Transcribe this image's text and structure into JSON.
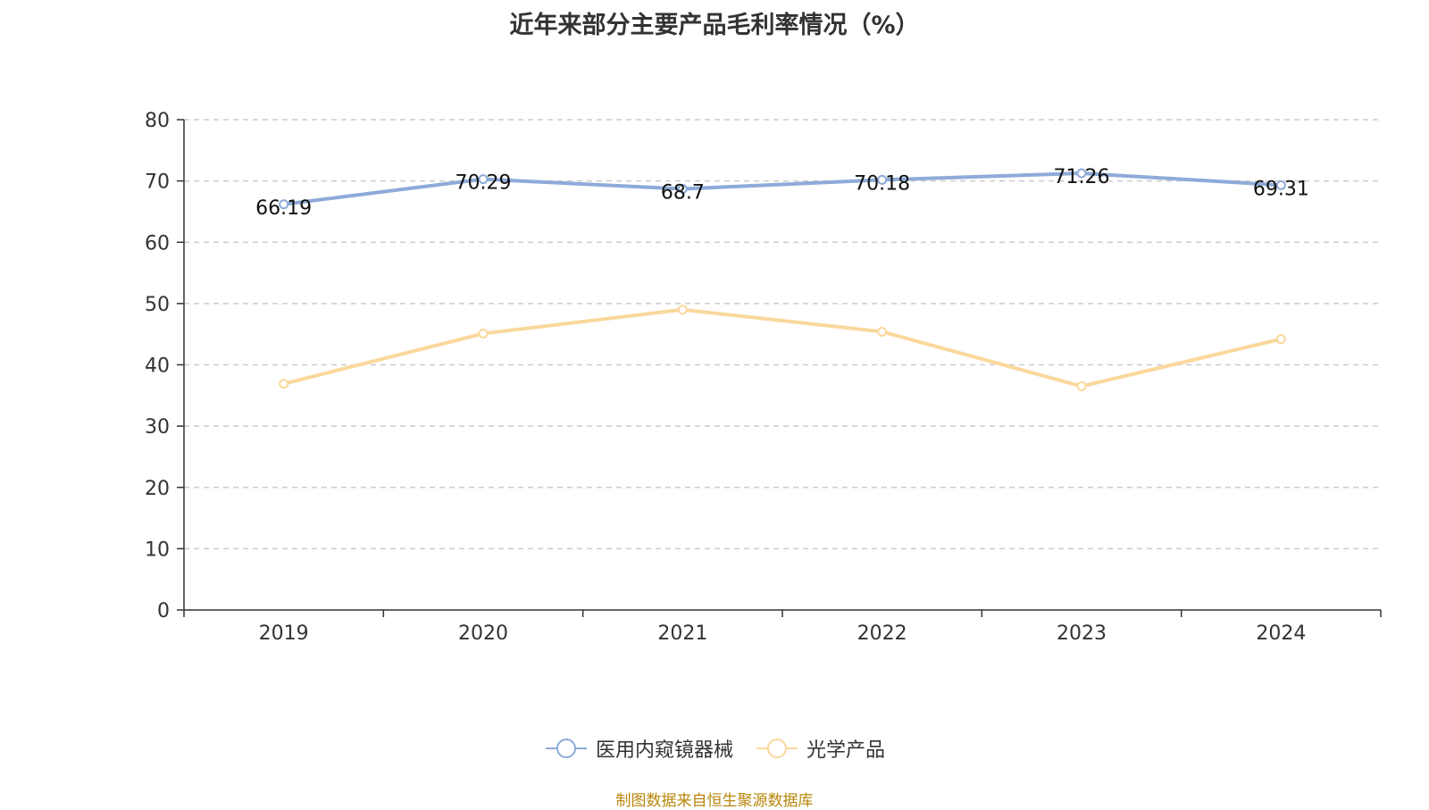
{
  "chart_data": {
    "type": "line",
    "title": "近年来部分主要产品毛利率情况（%）",
    "categories": [
      "2019",
      "2020",
      "2021",
      "2022",
      "2023",
      "2024"
    ],
    "ylim": [
      0,
      80
    ],
    "yticks": [
      0,
      10,
      20,
      30,
      40,
      50,
      60,
      70,
      80
    ],
    "grid": true,
    "legend_position": "bottom",
    "series": [
      {
        "name": "医用内窥镜器械",
        "color": "#8eaad8",
        "values": [
          66.19,
          70.29,
          68.7,
          70.18,
          71.26,
          69.31
        ],
        "labels": [
          "66.19",
          "70.29",
          "68.7",
          "70.18",
          "71.26",
          "69.31"
        ],
        "show_labels": true
      },
      {
        "name": "光学产品",
        "color": "#fad89b",
        "values": [
          36.9,
          45.1,
          49.0,
          45.4,
          36.5,
          44.2
        ],
        "show_labels": false
      }
    ]
  },
  "source": "制图数据来自恒生聚源数据库"
}
